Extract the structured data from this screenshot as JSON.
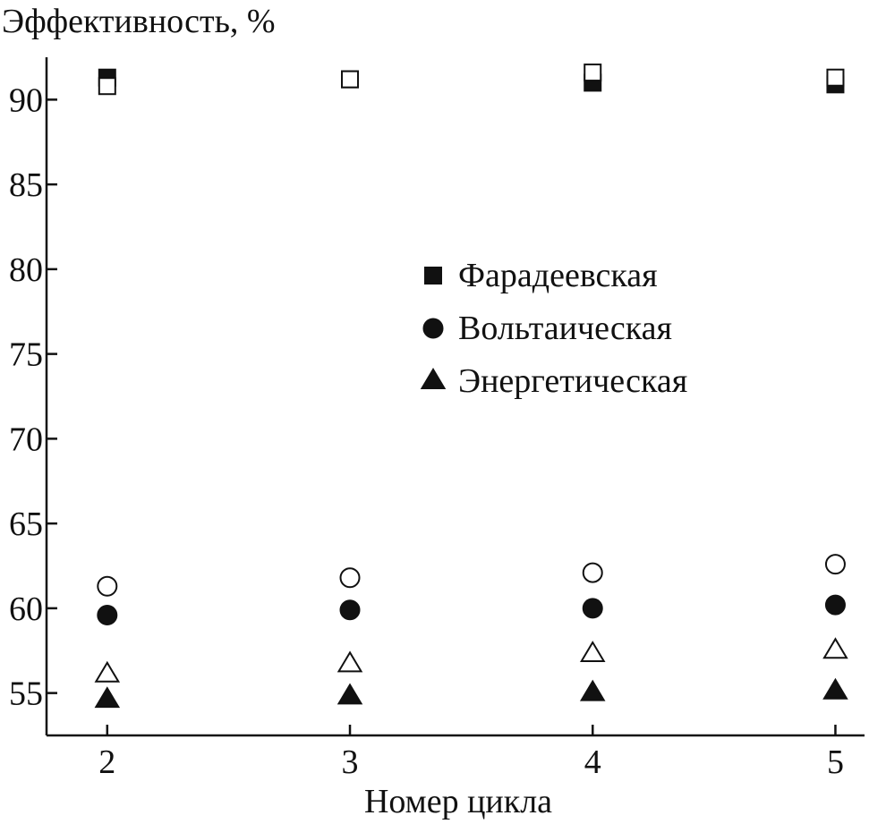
{
  "chart_data": {
    "type": "scatter",
    "ylabel": "Эффективность, %",
    "xlabel": "Номер цикла",
    "x_ticks": [
      "2",
      "3",
      "4",
      "5"
    ],
    "y_ticks": [
      "55",
      "60",
      "65",
      "70",
      "75",
      "80",
      "85",
      "90"
    ],
    "xlim": [
      1.75,
      5.12
    ],
    "ylim": [
      52.5,
      92.5
    ],
    "grid": false,
    "legend_position": "center-right",
    "legend": [
      {
        "label": "Фарадеевская",
        "marker": "square"
      },
      {
        "label": "Вольтаическая",
        "marker": "circle"
      },
      {
        "label": "Энергетическая",
        "marker": "triangle"
      }
    ],
    "series": [
      {
        "marker": "square",
        "fill": "filled",
        "x": [
          2,
          3,
          4,
          5
        ],
        "y": [
          91.3,
          91.2,
          91.0,
          90.9
        ]
      },
      {
        "marker": "square",
        "fill": "open",
        "x": [
          2,
          3,
          4,
          5
        ],
        "y": [
          90.8,
          91.2,
          91.6,
          91.3
        ]
      },
      {
        "marker": "circle",
        "fill": "filled",
        "x": [
          2,
          3,
          4,
          5
        ],
        "y": [
          59.6,
          59.9,
          60.0,
          60.2
        ]
      },
      {
        "marker": "circle",
        "fill": "open",
        "x": [
          2,
          3,
          4,
          5
        ],
        "y": [
          61.3,
          61.8,
          62.1,
          62.6
        ]
      },
      {
        "marker": "triangle",
        "fill": "filled",
        "x": [
          2,
          3,
          4,
          5
        ],
        "y": [
          54.6,
          54.8,
          55.0,
          55.1
        ]
      },
      {
        "marker": "triangle",
        "fill": "open",
        "x": [
          2,
          3,
          4,
          5
        ],
        "y": [
          56.1,
          56.7,
          57.3,
          57.5
        ]
      }
    ]
  }
}
